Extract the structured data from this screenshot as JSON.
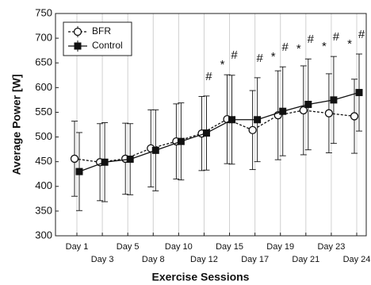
{
  "chart_data": {
    "type": "line",
    "x_label": "Exercise Sessions",
    "y_label": "Average Power [W]",
    "categories": [
      "Day 1",
      "Day 3",
      "Day 5",
      "Day 8",
      "Day 10",
      "Day 12",
      "Day 15",
      "Day 17",
      "Day 19",
      "Day 21",
      "Day 23",
      "Day 24"
    ],
    "series": [
      {
        "name": "BFR",
        "color": "#111111",
        "marker": "open-circle",
        "dashed": true,
        "values": [
          456,
          449,
          456,
          477,
          491,
          507,
          536,
          514,
          544,
          554,
          548,
          542
        ],
        "errors": [
          76,
          78,
          72,
          78,
          76,
          75,
          90,
          80,
          90,
          90,
          80,
          75
        ]
      },
      {
        "name": "Control",
        "color": "#111111",
        "marker": "filled-square",
        "dashed": false,
        "values": [
          430,
          449,
          455,
          473,
          491,
          508,
          535,
          535,
          552,
          566,
          575,
          590
        ],
        "errors": [
          79,
          80,
          72,
          82,
          78,
          75,
          90,
          85,
          90,
          92,
          88,
          78
        ]
      }
    ],
    "annotations": [
      {
        "text": "#",
        "category": "Day 12",
        "series": "Control"
      },
      {
        "text": "*",
        "category": "Day 15",
        "series": "BFR"
      },
      {
        "text": "#",
        "category": "Day 15",
        "series": "Control"
      },
      {
        "text": "#",
        "category": "Day 17",
        "series": "Control"
      },
      {
        "text": "*",
        "category": "Day 19",
        "series": "BFR"
      },
      {
        "text": "#",
        "category": "Day 19",
        "series": "Control"
      },
      {
        "text": "*",
        "category": "Day 21",
        "series": "BFR"
      },
      {
        "text": "#",
        "category": "Day 21",
        "series": "Control"
      },
      {
        "text": "*",
        "category": "Day 23",
        "series": "BFR"
      },
      {
        "text": "#",
        "category": "Day 23",
        "series": "Control"
      },
      {
        "text": "*",
        "category": "Day 24",
        "series": "BFR"
      },
      {
        "text": "#",
        "category": "Day 24",
        "series": "Control"
      }
    ],
    "ylim": [
      300,
      750
    ],
    "yticks": [
      300,
      350,
      400,
      450,
      500,
      550,
      600,
      650,
      700,
      750
    ],
    "category_grid": true,
    "legend_position": "upper-left"
  }
}
